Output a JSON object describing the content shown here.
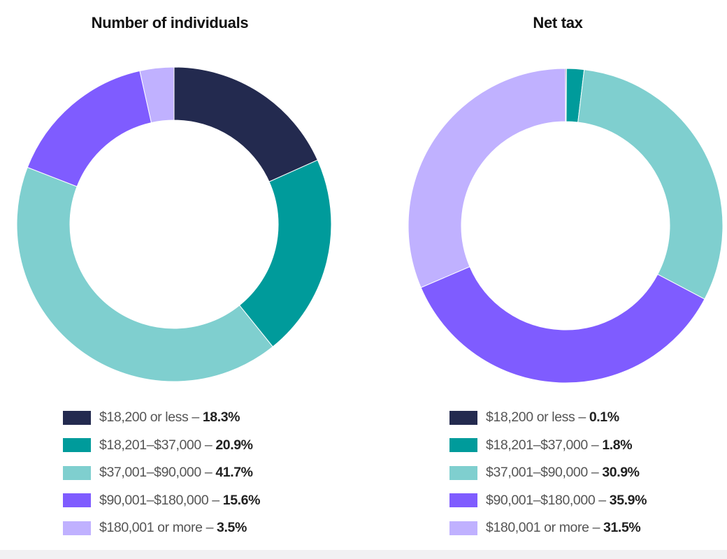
{
  "chart_data": [
    {
      "type": "pie",
      "title": "Number of individuals",
      "categories": [
        "$18,200 or less",
        "$18,201–$37,000",
        "$37,001–$90,000",
        "$90,001–$180,000",
        "$180,001 or more"
      ],
      "values": [
        18.3,
        20.9,
        41.7,
        15.6,
        3.5
      ],
      "value_labels": [
        "18.3%",
        "20.9%",
        "41.7%",
        "15.6%",
        "3.5%"
      ],
      "colors": [
        "#232a4f",
        "#009b9b",
        "#7fcfcf",
        "#7f5cff",
        "#c0b1ff"
      ],
      "legend_position": "bottom"
    },
    {
      "type": "pie",
      "title": "Net tax",
      "categories": [
        "$18,200 or less",
        "$18,201–$37,000",
        "$37,001–$90,000",
        "$90,001–$180,000",
        "$180,001 or more"
      ],
      "values": [
        0.1,
        1.8,
        30.9,
        35.9,
        31.5
      ],
      "value_labels": [
        "0.1%",
        "1.8%",
        "30.9%",
        "35.9%",
        "31.5%"
      ],
      "colors": [
        "#232a4f",
        "#009b9b",
        "#7fcfcf",
        "#7f5cff",
        "#c0b1ff"
      ],
      "legend_position": "bottom"
    }
  ]
}
